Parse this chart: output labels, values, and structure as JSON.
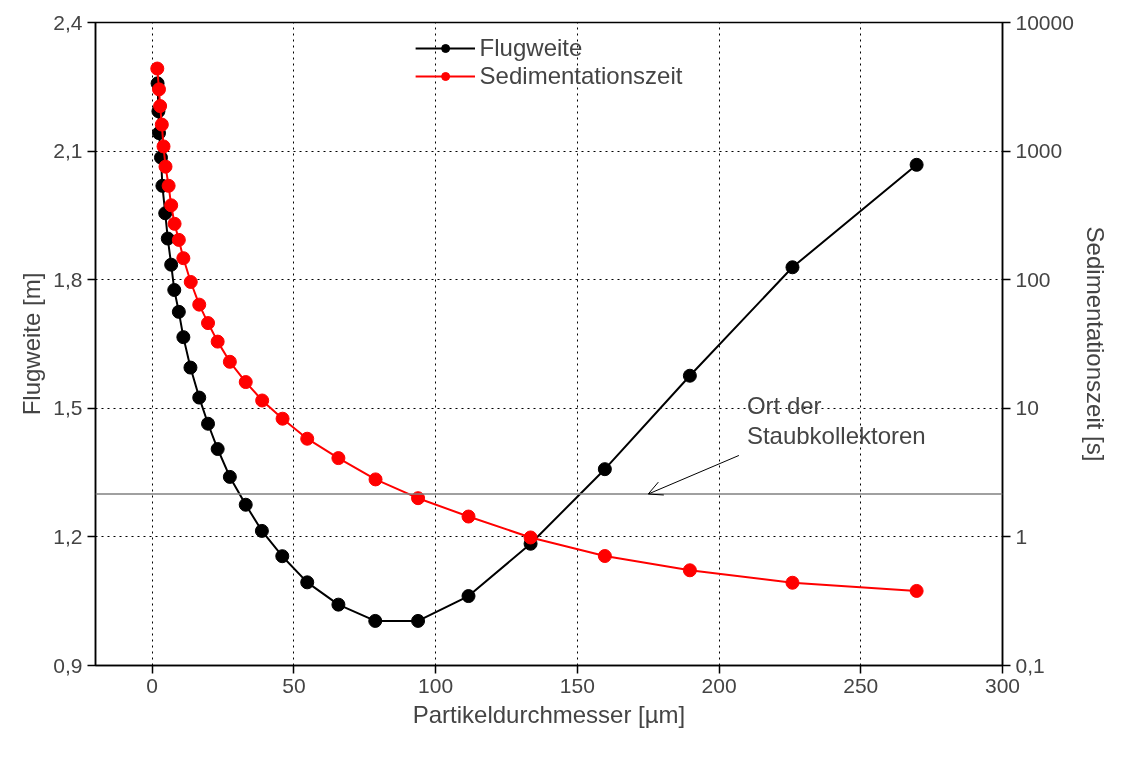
{
  "chart_data": {
    "type": "line",
    "xlabel": "Partikeldurchmesser [µm]",
    "ylabel": "Flugweite [m]",
    "y2label": "Sedimentationszeit [s]",
    "xlim": [
      -20,
      300
    ],
    "xticks": [
      0,
      50,
      100,
      150,
      200,
      250,
      300
    ],
    "ylim": [
      0.9,
      2.4
    ],
    "yticks": [
      {
        "value": 0.9,
        "label": "0,9"
      },
      {
        "value": 1.2,
        "label": "1,2"
      },
      {
        "value": 1.5,
        "label": "1,5"
      },
      {
        "value": 1.8,
        "label": "1,8"
      },
      {
        "value": 2.1,
        "label": "2,1"
      },
      {
        "value": 2.4,
        "label": "2,4"
      }
    ],
    "y2lim": [
      0.1,
      10000
    ],
    "y2ticks": [
      {
        "value": 0.1,
        "label": "0,1"
      },
      1,
      10,
      100,
      1000,
      10000
    ],
    "log": "y2",
    "grid": true,
    "legend": "top",
    "marker": "circle",
    "line_style": "solid",
    "series": [
      {
        "name": "Flugweite",
        "color": "#000000",
        "x": [
          1.9,
          2.2,
          2.4,
          3.1,
          3.6,
          4.6,
          5.5,
          6.7,
          7.8,
          9.4,
          11.0,
          13.5,
          16.6,
          19.7,
          23.1,
          27.4,
          33.0,
          38.7,
          45.9,
          54.7,
          65.7,
          78.7,
          93.8,
          111.6,
          133.5,
          159.7,
          189.7,
          225.9,
          269.7
        ],
        "values": [
          2.258,
          2.193,
          2.142,
          2.085,
          2.019,
          1.955,
          1.896,
          1.835,
          1.776,
          1.725,
          1.666,
          1.595,
          1.525,
          1.464,
          1.405,
          1.34,
          1.275,
          1.214,
          1.155,
          1.094,
          1.042,
          1.004,
          1.004,
          1.062,
          1.184,
          1.358,
          1.576,
          1.829,
          2.068
        ]
      },
      {
        "name": "Sedimentationszeit",
        "color": "#ff0000",
        "axis": "y2",
        "x": [
          1.8,
          2.4,
          2.8,
          3.4,
          4.0,
          4.7,
          5.8,
          6.7,
          7.9,
          9.4,
          11.0,
          13.6,
          16.6,
          19.7,
          23.1,
          27.4,
          33.0,
          38.8,
          46.0,
          54.7,
          65.7,
          78.8,
          93.8,
          111.6,
          133.5,
          159.7,
          189.7,
          225.9,
          269.7
        ],
        "values": [
          4385,
          3020,
          2240,
          1608,
          1087,
          757,
          537,
          379,
          272,
          204,
          147,
          96,
          64,
          46,
          33,
          23,
          16,
          11.5,
          8.3,
          5.8,
          4.1,
          2.8,
          2.0,
          1.44,
          0.99,
          0.71,
          0.55,
          0.44,
          0.38
        ]
      }
    ],
    "ref_lines": [
      {
        "axis": "y",
        "value": 1.3,
        "color": "#808080"
      }
    ],
    "annotations": [
      {
        "text": "Ort der\nStaubkollektoren",
        "x": 175,
        "y": 1.3
      }
    ]
  }
}
